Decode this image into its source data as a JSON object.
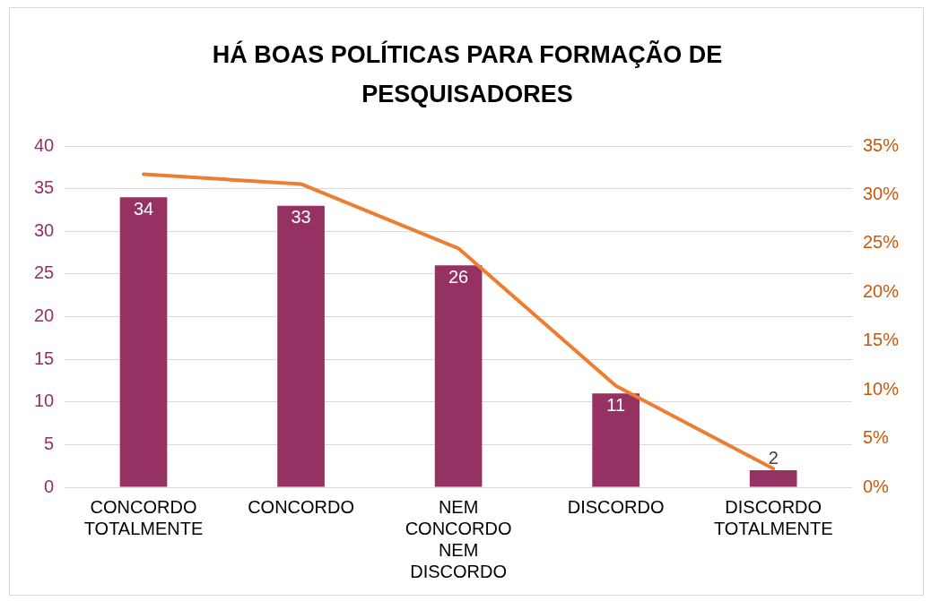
{
  "chart_data": {
    "type": "bar",
    "title": "HÁ BOAS POLÍTICAS PARA FORMAÇÃO DE PESQUISADORES",
    "categories": [
      "CONCORDO TOTALMENTE",
      "CONCORDO",
      "NEM CONCORDO NEM DISCORDO",
      "DISCORDO",
      "DISCORDO TOTALMENTE"
    ],
    "series": [
      {
        "color": "#953163",
        "values": [
          34,
          33,
          26,
          11,
          2
        ],
        "value_labels": [
          "34",
          "33",
          "26",
          "11",
          "2"
        ]
      },
      {
        "type": "line",
        "axis": "y2",
        "color": "#ed7d31",
        "values": [
          32.1,
          31.1,
          24.5,
          10.4,
          1.9
        ]
      }
    ],
    "ylim": [
      0,
      40
    ],
    "yticks": [
      0,
      5,
      10,
      15,
      20,
      25,
      30,
      35,
      40
    ],
    "y2lim": [
      0,
      35
    ],
    "y2ticks": [
      {
        "value": 0,
        "label": "0%"
      },
      {
        "value": 5,
        "label": "5%"
      },
      {
        "value": 10,
        "label": "10%"
      },
      {
        "value": 15,
        "label": "15%"
      },
      {
        "value": 20,
        "label": "20%"
      },
      {
        "value": 25,
        "label": "25%"
      },
      {
        "value": 30,
        "label": "30%"
      },
      {
        "value": 35,
        "label": "35%"
      }
    ],
    "grid": "y",
    "legend": false,
    "marker": "none"
  }
}
